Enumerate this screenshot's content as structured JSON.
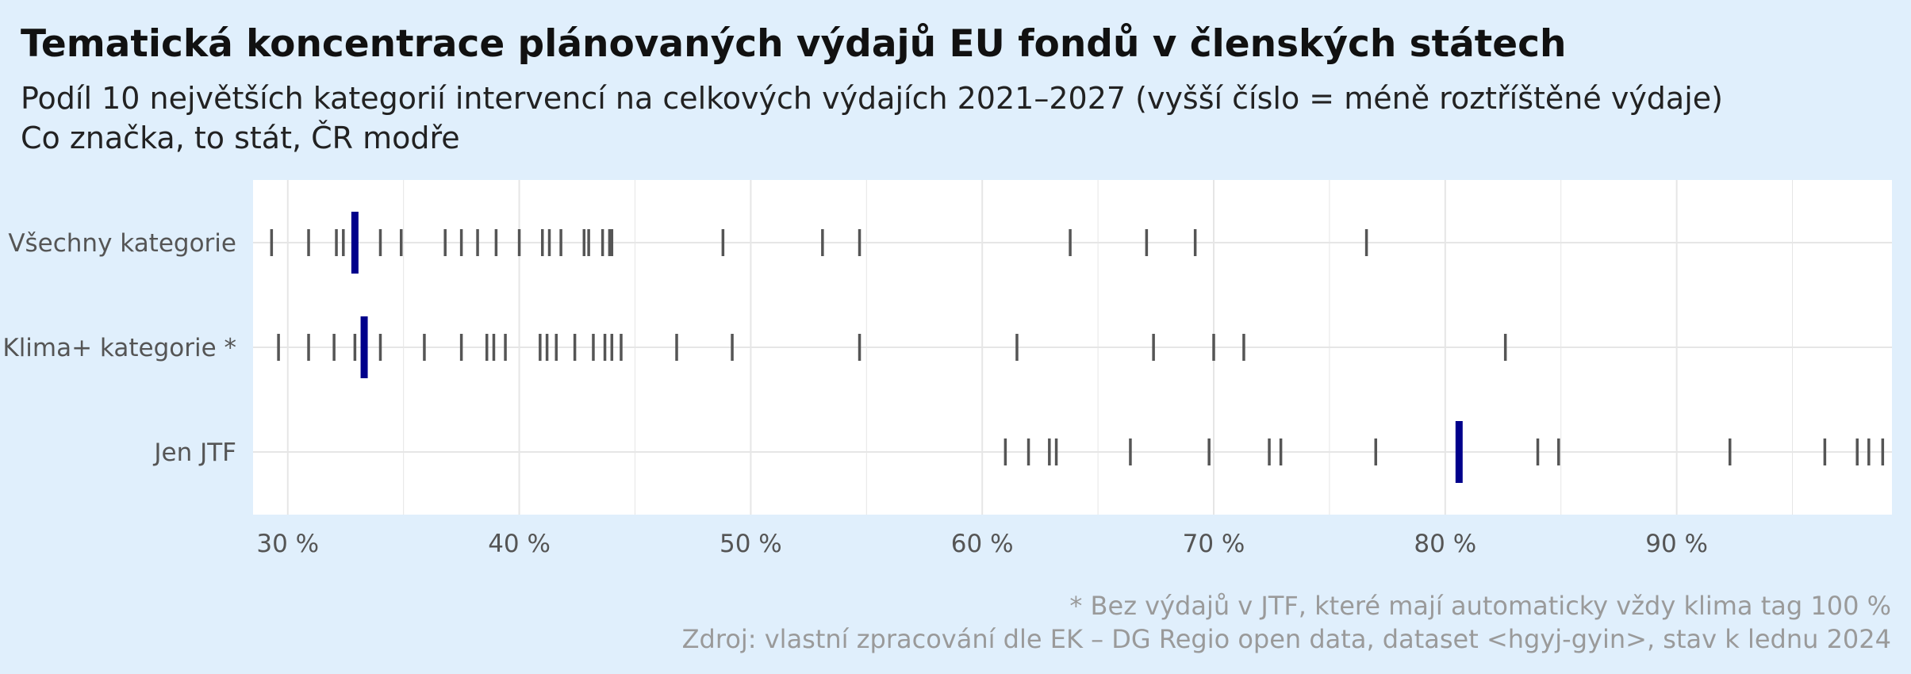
{
  "title": "Tematická koncentrace plánovaných výdajů EU fondů v členských státech",
  "subtitle": "Podíl 10 největších kategorií intervencí na celkových výdajích 2021–2027 (vyšší číslo = méně roztříštěné výdaje)",
  "subtitle2": "Co značka, to stát, ČR modře",
  "caption1": "* Bez výdajů v JTF, které mají automaticky vždy klima tag 100 %",
  "caption2": "Zdroj: vlastní zpracování dle EK – DG Regio open data, dataset <hgyj-gyin>, stav k lednu 2024",
  "colors": {
    "background": "#e0effc",
    "panel": "#ffffff",
    "grid": "#e6e6e6",
    "tick_mark": "#555555",
    "highlight": "#00008b"
  },
  "chart_data": {
    "type": "strip",
    "xlim": [
      28.5,
      99.3
    ],
    "x_ticks": [
      {
        "value": 30,
        "label": "30 %"
      },
      {
        "value": 40,
        "label": "40 %"
      },
      {
        "value": 50,
        "label": "50 %"
      },
      {
        "value": 60,
        "label": "60 %"
      },
      {
        "value": 70,
        "label": "70 %"
      },
      {
        "value": 80,
        "label": "80 %"
      },
      {
        "value": 90,
        "label": "90 %"
      }
    ],
    "grid": true,
    "categories": [
      "Všechny kategorie",
      "Klima+ kategorie *",
      "Jen JTF"
    ],
    "series": [
      {
        "category": "Všechny kategorie",
        "values": [
          29.3,
          30.9,
          32.1,
          32.4,
          34.0,
          34.9,
          36.8,
          37.5,
          38.2,
          39.0,
          40.0,
          41.0,
          41.3,
          41.8,
          42.8,
          43.0,
          43.6,
          43.9,
          44.0,
          48.8,
          53.1,
          54.7,
          63.8,
          67.1,
          69.2,
          76.6
        ],
        "highlight_value": 32.9
      },
      {
        "category": "Klima+ kategorie *",
        "values": [
          29.6,
          30.9,
          32.0,
          32.9,
          34.0,
          35.9,
          37.5,
          38.6,
          38.9,
          39.4,
          40.9,
          41.2,
          41.6,
          42.4,
          43.2,
          43.7,
          44.0,
          44.4,
          46.8,
          49.2,
          54.7,
          61.5,
          67.4,
          70.0,
          71.3,
          82.6
        ],
        "highlight_value": 33.3
      },
      {
        "category": "Jen JTF",
        "values": [
          61.0,
          62.0,
          62.9,
          63.2,
          66.4,
          69.8,
          72.4,
          72.9,
          77.0,
          84.0,
          84.9,
          92.3,
          96.4,
          97.8,
          98.3,
          98.9
        ],
        "highlight_value": 80.6
      }
    ]
  }
}
